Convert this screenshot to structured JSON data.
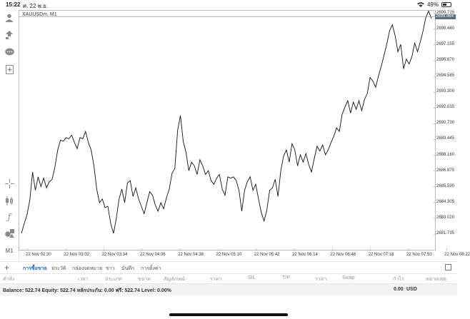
{
  "status_bar": {
    "time": "15:22",
    "date": "ศ. 22 พ.ย.",
    "battery": "49%",
    "battery_level": 0.49
  },
  "chart": {
    "symbol": "XAUUSDm, M1",
    "current_price": "2699.464",
    "top_price": "2699.725",
    "y_range": [
      2680.4,
      2700.0
    ],
    "price_labels": [
      "2699.725",
      "2698.440",
      "2697.155",
      "2695.870",
      "2694.585",
      "2693.300",
      "2692.015",
      "2690.730",
      "2689.445",
      "2688.160",
      "2686.875",
      "2685.590",
      "2684.305",
      "2683.020",
      "2681.735"
    ],
    "time_labels": [
      "22 Nov 02:30",
      "22 Nov 03:02",
      "22 Nov 03:34",
      "22 Nov 04:06",
      "22 Nov 04:38",
      "22 Nov 05:10",
      "22 Nov 05:42",
      "22 Nov 06:14",
      "22 Nov 06:46",
      "22 Nov 07:18",
      "22 Nov 07:50",
      "22 Nov 08:22"
    ],
    "line_color": "#111111",
    "current_tag_color": "#5a6b7a"
  },
  "chart_data": {
    "type": "line",
    "title": "XAUUSDm, M1",
    "y_values": [
      2681.8,
      2682.6,
      2683.3,
      2684.5,
      2686.8,
      2685.3,
      2686.4,
      2685.6,
      2686.3,
      2685.5,
      2686.0,
      2686.2,
      2687.2,
      2688.6,
      2689.4,
      2689.3,
      2689.6,
      2689.5,
      2689.8,
      2689.2,
      2688.7,
      2689.6,
      2689.5,
      2690.1,
      2689.2,
      2688.6,
      2687.3,
      2685.4,
      2684.3,
      2684.6,
      2683.9,
      2684.0,
      2682.6,
      2681.8,
      2683.0,
      2684.6,
      2685.4,
      2684.3,
      2685.9,
      2686.1,
      2684.8,
      2685.5,
      2684.6,
      2684.0,
      2683.4,
      2684.3,
      2685.2,
      2684.9,
      2684.1,
      2683.6,
      2684.3,
      2683.8,
      2684.7,
      2685.4,
      2686.7,
      2687.1,
      2690.2,
      2691.4,
      2689.3,
      2688.4,
      2686.9,
      2687.6,
      2687.3,
      2686.6,
      2687.8,
      2687.3,
      2686.6,
      2686.9,
      2686.1,
      2685.8,
      2686.3,
      2686.6,
      2685.4,
      2684.9,
      2686.4,
      2686.3,
      2686.4,
      2686.1,
      2685.3,
      2683.6,
      2685.3,
      2686.0,
      2686.4,
      2685.3,
      2685.8,
      2684.6,
      2683.5,
      2682.8,
      2683.7,
      2685.3,
      2685.5,
      2686.2,
      2684.8,
      2686.9,
      2688.1,
      2688.6,
      2687.6,
      2689.1,
      2688.6,
      2687.3,
      2688.2,
      2687.6,
      2688.3,
      2687.4,
      2686.8,
      2687.9,
      2688.9,
      2688.5,
      2689.0,
      2688.2,
      2688.6,
      2689.2,
      2689.7,
      2690.4,
      2690.1,
      2691.5,
      2692.1,
      2692.6,
      2691.6,
      2692.5,
      2691.9,
      2692.6,
      2691.8,
      2692.7,
      2693.2,
      2694.5,
      2694.2,
      2693.7,
      2694.6,
      2695.4,
      2696.3,
      2697.2,
      2698.3,
      2698.8,
      2697.9,
      2696.6,
      2697.2,
      2695.2,
      2696.0,
      2695.6,
      2696.2,
      2697.3,
      2696.6,
      2697.4,
      2698.3,
      2699.4,
      2699.9,
      2699.3
    ]
  },
  "toolbar": {
    "icons": [
      "account-icon",
      "trade-arrow-icon",
      "chat-icon",
      "add-document-icon",
      "crosshair-icon",
      "candlestick-icon",
      "function-icon",
      "objects-icon",
      "timeframe-icon"
    ],
    "timeframe_label": "M1",
    "function_glyph": "ƒ"
  },
  "tabs": {
    "plus": "+",
    "items": [
      "การซื้อขาย",
      "ประวัติ",
      "กล่องจดหมาย",
      "ข่าว",
      "บันทึก",
      "การตั้งค่า"
    ]
  },
  "columns": [
    "คำสั่ง",
    "เวลา",
    "ประเภท",
    "ขนาด",
    "สัญลักษณ์",
    "ราคา",
    "S/L",
    "T/P",
    "ราคา",
    "Swap",
    "กำไร",
    "หมายเหตุ"
  ],
  "balance": {
    "text": "Balance: 522.74  Equity: 522.74  หลักประกัน: 0.00  ฟรี: 522.74  Level: 0.00%",
    "profit": "0.00",
    "currency": "USD"
  }
}
